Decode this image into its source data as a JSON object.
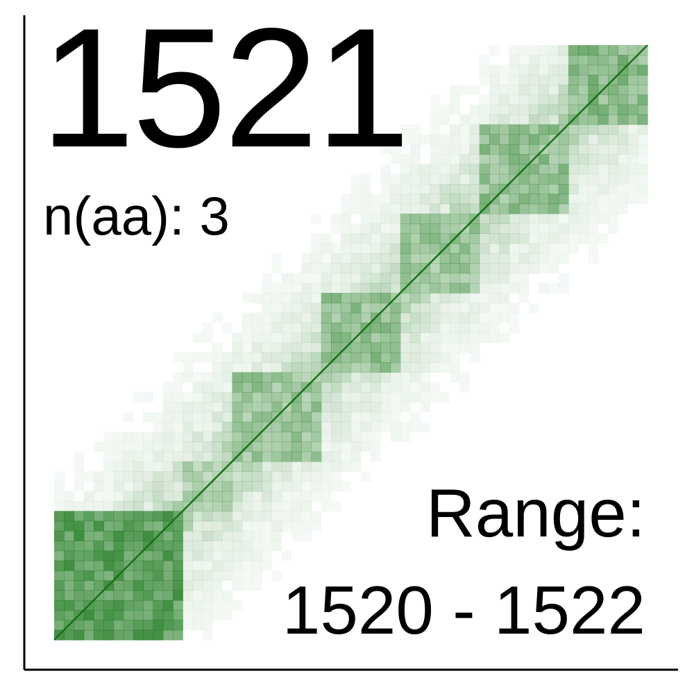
{
  "chart_data": {
    "type": "heatmap",
    "title": "1521",
    "subtitle_label": "n(aa):",
    "subtitle_value": "3",
    "range_label": "Range:",
    "range_text": "1520 - 1522",
    "range": [
      1520,
      1522
    ],
    "grid": false,
    "legend": "none",
    "xlabel": "",
    "ylabel": "",
    "colors": {
      "cell": "#1f7a1f",
      "diagonal": "#167016",
      "axis": "#000000",
      "background": "#ffffff"
    },
    "blocks": [
      {
        "from": 0.0,
        "to": 0.22,
        "value": 0.75
      },
      {
        "from": 0.22,
        "to": 0.3,
        "value": 0.45
      },
      {
        "from": 0.3,
        "to": 0.45,
        "value": 0.55
      },
      {
        "from": 0.45,
        "to": 0.58,
        "value": 0.6
      },
      {
        "from": 0.58,
        "to": 0.72,
        "value": 0.55
      },
      {
        "from": 0.72,
        "to": 0.86,
        "value": 0.6
      },
      {
        "from": 0.86,
        "to": 1.0,
        "value": 0.65
      }
    ]
  }
}
